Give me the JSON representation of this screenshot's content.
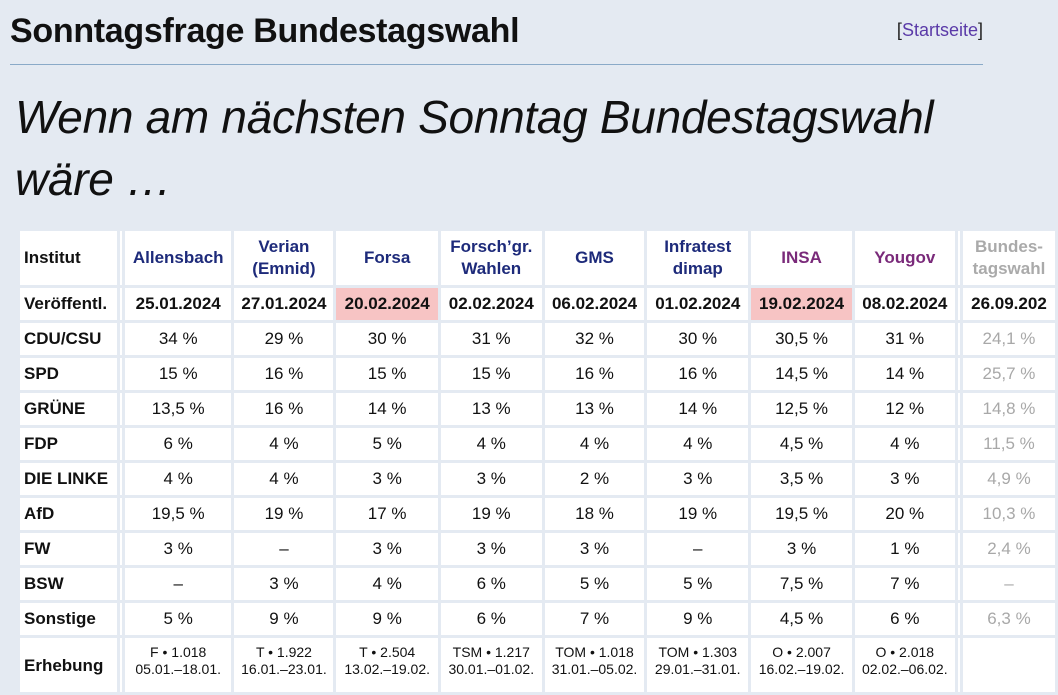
{
  "header": {
    "title": "Sonntagsfrage Bundestagswahl",
    "home_bracket_open": "[",
    "home_link": "Startseite",
    "home_bracket_close": "]"
  },
  "headline": "Wenn am nächsten Sonntag Bundestagswahl wäre …",
  "table": {
    "institute_label": "Institut",
    "published_label": "Veröffentl.",
    "institutes": [
      {
        "name": "Allensbach",
        "date": "25.01.2024"
      },
      {
        "name": "Verian (Emnid)",
        "date": "27.01.2024"
      },
      {
        "name": "Forsa",
        "date": "20.02.2024"
      },
      {
        "name": "Forsch’gr. Wahlen",
        "date": "02.02.2024"
      },
      {
        "name": "GMS",
        "date": "06.02.2024"
      },
      {
        "name": "Infratest dimap",
        "date": "01.02.2024"
      },
      {
        "name": "INSA",
        "date": "19.02.2024"
      },
      {
        "name": "Yougov",
        "date": "08.02.2024"
      },
      {
        "name": "Bundes-tagswahl",
        "date": "26.09.202"
      }
    ],
    "parties": [
      {
        "name": "CDU/CSU",
        "values": [
          "34 %",
          "29 %",
          "30 %",
          "31 %",
          "32 %",
          "30 %",
          "30,5 %",
          "31 %",
          "24,1 %"
        ]
      },
      {
        "name": "SPD",
        "values": [
          "15 %",
          "16 %",
          "15 %",
          "15 %",
          "16 %",
          "16 %",
          "14,5 %",
          "14 %",
          "25,7 %"
        ]
      },
      {
        "name": "GRÜNE",
        "values": [
          "13,5 %",
          "16 %",
          "14 %",
          "13 %",
          "13 %",
          "14 %",
          "12,5 %",
          "12 %",
          "14,8 %"
        ]
      },
      {
        "name": "FDP",
        "values": [
          "6 %",
          "4 %",
          "5 %",
          "4 %",
          "4 %",
          "4 %",
          "4,5 %",
          "4 %",
          "11,5 %"
        ]
      },
      {
        "name": "DIE LINKE",
        "values": [
          "4 %",
          "4 %",
          "3 %",
          "3 %",
          "2 %",
          "3 %",
          "3,5 %",
          "3 %",
          "4,9 %"
        ]
      },
      {
        "name": "AfD",
        "values": [
          "19,5 %",
          "19 %",
          "17 %",
          "19 %",
          "18 %",
          "19 %",
          "19,5 %",
          "20 %",
          "10,3 %"
        ]
      },
      {
        "name": "FW",
        "values": [
          "3 %",
          "–",
          "3 %",
          "3 %",
          "3 %",
          "–",
          "3 %",
          "1 %",
          "2,4 %"
        ]
      },
      {
        "name": "BSW",
        "values": [
          "–",
          "3 %",
          "4 %",
          "6 %",
          "5 %",
          "5 %",
          "7,5 %",
          "7 %",
          "–"
        ]
      },
      {
        "name": "Sonstige",
        "values": [
          "5 %",
          "9 %",
          "9 %",
          "6 %",
          "7 %",
          "9 %",
          "4,5 %",
          "6 %",
          "6,3 %"
        ]
      }
    ],
    "survey_label": "Erhebung",
    "survey": [
      {
        "method": "F • 1.018",
        "period": "05.01.–18.01."
      },
      {
        "method": "T • 1.922",
        "period": "16.01.–23.01."
      },
      {
        "method": "T • 2.504",
        "period": "13.02.–19.02."
      },
      {
        "method": "TSM • 1.217",
        "period": "30.01.–01.02."
      },
      {
        "method": "TOM • 1.018",
        "period": "31.01.–05.02."
      },
      {
        "method": "TOM • 1.303",
        "period": "29.01.–31.01."
      },
      {
        "method": "O • 2.007",
        "period": "16.02.–19.02."
      },
      {
        "method": "O • 2.018",
        "period": "02.02.–06.02."
      },
      {
        "method": "",
        "period": ""
      }
    ],
    "colors": {
      "institute_blue": "#1d2a7a",
      "institute_purple": "#7a2a7a",
      "highlight": "#f7c4c4",
      "past_election_gray": "#a8a8a8"
    }
  }
}
